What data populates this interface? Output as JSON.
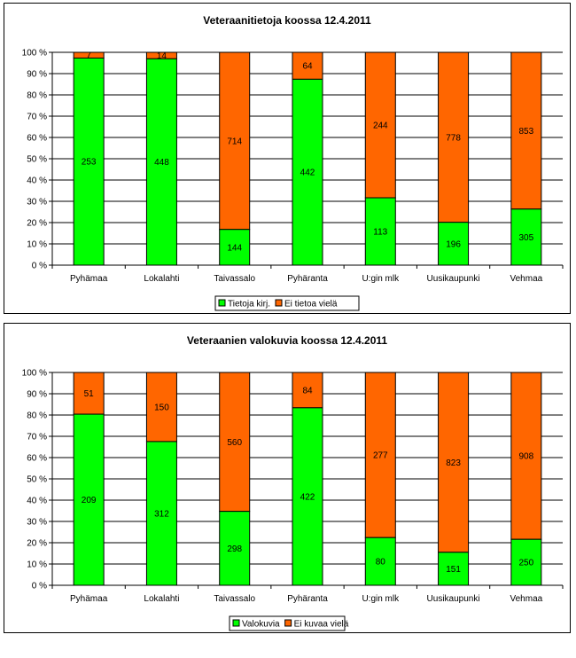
{
  "colors": {
    "green": "#00ff00",
    "orange": "#ff6600",
    "stroke": "#000000",
    "grid": "#000000"
  },
  "chart_data": [
    {
      "type": "bar",
      "stacked": "percent",
      "title": "Veteraanitietoja koossa 12.4.2011",
      "categories": [
        "Pyhämaa",
        "Lokalahti",
        "Taivassalo",
        "Pyhäranta",
        "U:gin mlk",
        "Uusikaupunki",
        "Vehmaa"
      ],
      "series": [
        {
          "name": "Tietoja kirj.",
          "color": "#00ff00",
          "values": [
            253,
            448,
            144,
            442,
            113,
            196,
            305
          ]
        },
        {
          "name": "Ei tietoa vielä",
          "color": "#ff6600",
          "values": [
            7,
            14,
            714,
            64,
            244,
            778,
            853
          ]
        }
      ],
      "yticks": [
        "0 %",
        "10 %",
        "20 %",
        "30 %",
        "40 %",
        "50 %",
        "60 %",
        "70 %",
        "80 %",
        "90 %",
        "100 %"
      ],
      "ylim": [
        0,
        100
      ],
      "grid": true,
      "legend": "bottom-center"
    },
    {
      "type": "bar",
      "stacked": "percent",
      "title": "Veteraanien valokuvia koossa 12.4.2011",
      "categories": [
        "Pyhämaa",
        "Lokalahti",
        "Taivassalo",
        "Pyhäranta",
        "U:gin mlk",
        "Uusikaupunki",
        "Vehmaa"
      ],
      "series": [
        {
          "name": "Valokuvia",
          "color": "#00ff00",
          "values": [
            209,
            312,
            298,
            422,
            80,
            151,
            250
          ]
        },
        {
          "name": "Ei kuvaa vielä",
          "color": "#ff6600",
          "values": [
            51,
            150,
            560,
            84,
            277,
            823,
            908
          ]
        }
      ],
      "yticks": [
        "0 %",
        "10 %",
        "20 %",
        "30 %",
        "40 %",
        "50 %",
        "60 %",
        "70 %",
        "80 %",
        "90 %",
        "100 %"
      ],
      "ylim": [
        0,
        100
      ],
      "grid": true,
      "legend": "bottom-center"
    }
  ]
}
